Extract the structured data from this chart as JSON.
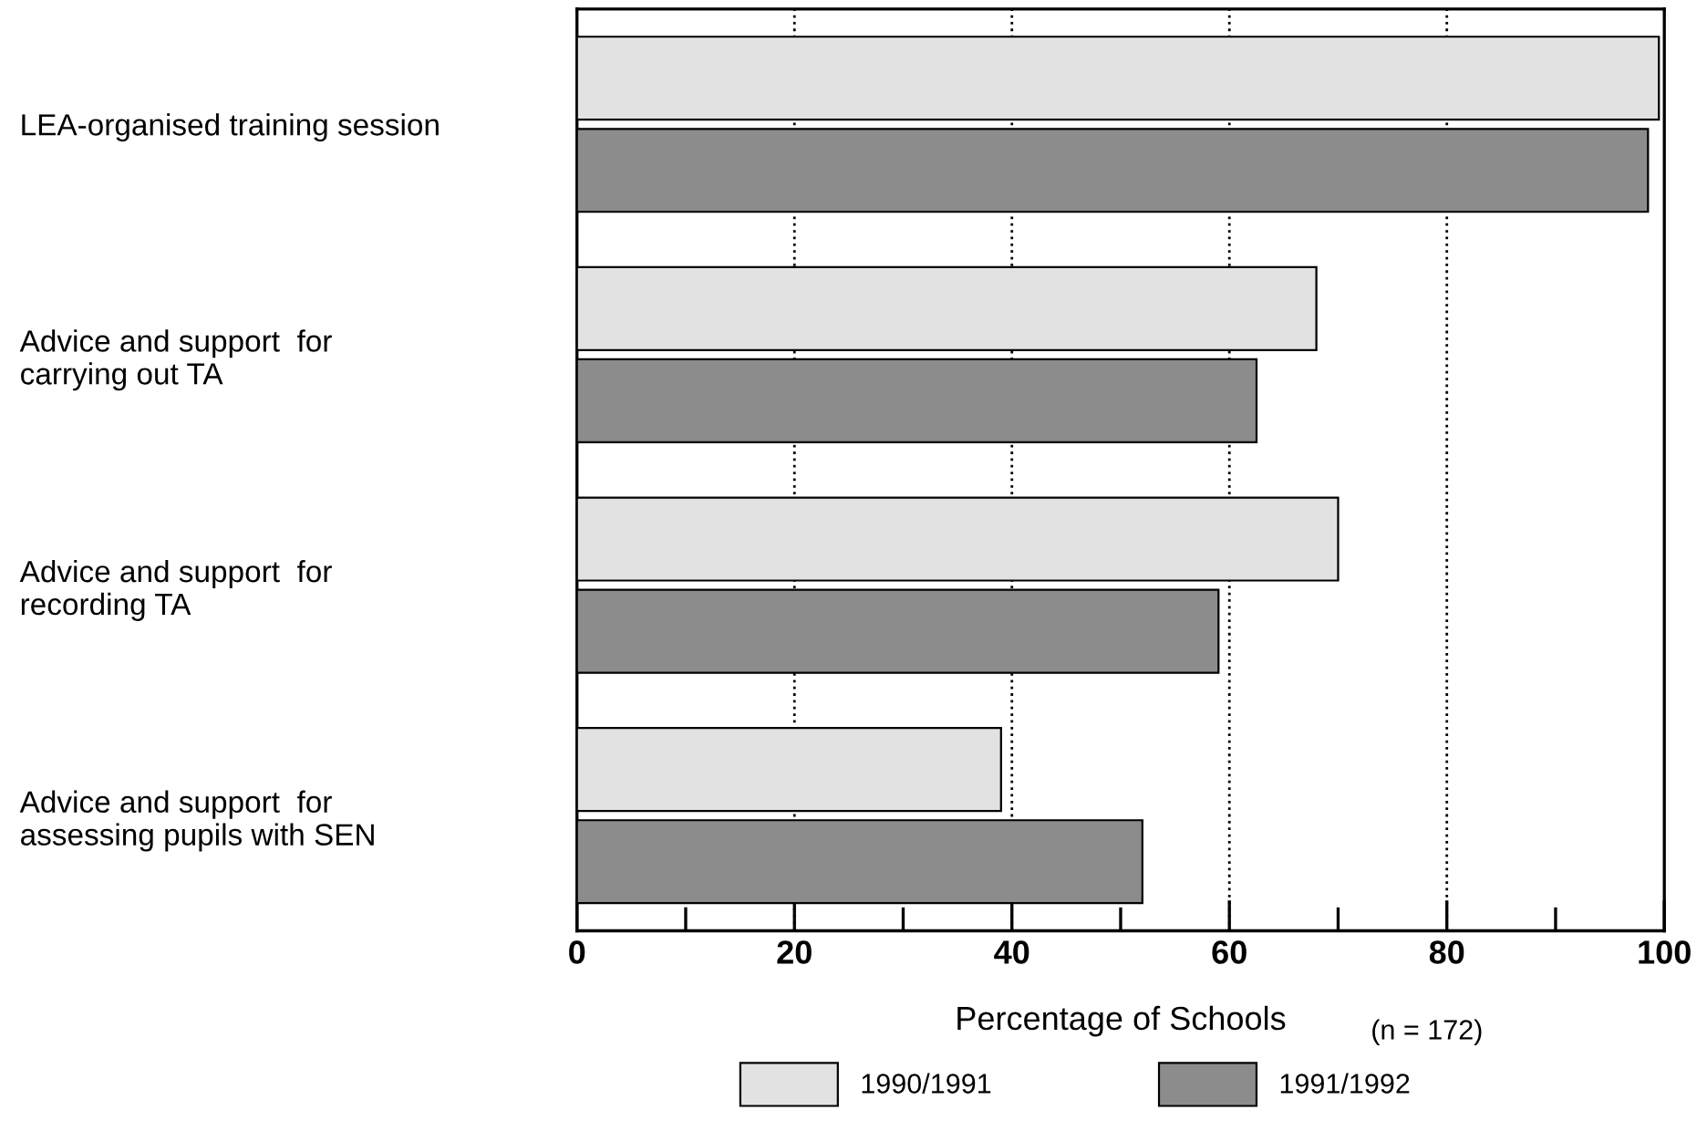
{
  "chart_data": {
    "type": "bar",
    "orientation": "horizontal",
    "xlabel": "Percentage of Schools",
    "annotations": [
      "(n = 172)"
    ],
    "categories": [
      "LEA-organised training session",
      "Advice and support  for\ncarrying out TA",
      "Advice and support  for\nrecording TA",
      "Advice and support  for\nassessing pupils with SEN"
    ],
    "series": [
      {
        "name": "1990/1991",
        "color": "#e2e2e2",
        "values": [
          99.5,
          68,
          70,
          39
        ]
      },
      {
        "name": "1991/1992",
        "color": "#8c8c8c",
        "values": [
          98.5,
          62.5,
          59,
          52
        ]
      }
    ],
    "xlim": [
      0,
      100
    ],
    "xticks": [
      0,
      {
        "value": 10,
        "label": null
      },
      20,
      {
        "value": 30,
        "label": null
      },
      40,
      {
        "value": 50,
        "label": null
      },
      60,
      {
        "value": 70,
        "label": null
      },
      80,
      {
        "value": 90,
        "label": null
      },
      100
    ],
    "grid": "x",
    "legend": "bottom"
  }
}
